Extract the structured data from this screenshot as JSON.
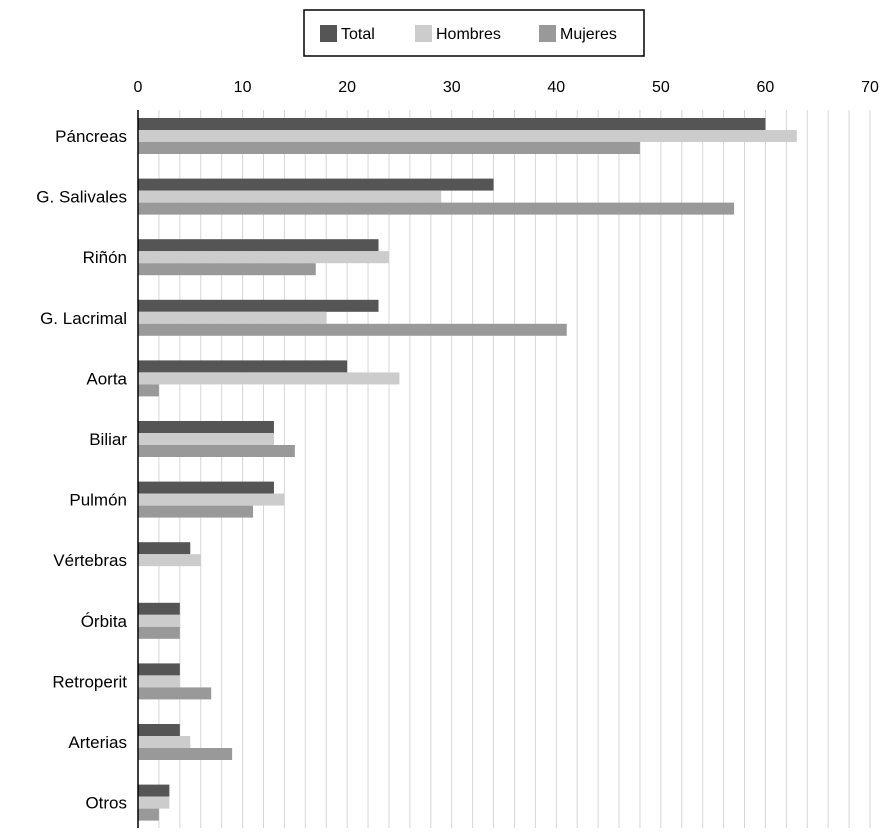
{
  "chart_data": {
    "type": "bar",
    "orientation": "horizontal",
    "categories": [
      "Páncreas",
      "G. Salivales",
      "Riñón",
      "G. Lacrimal",
      "Aorta",
      "Biliar",
      "Pulmón",
      "Vértebras",
      "Órbita",
      "Retroperit",
      "Arterias",
      "Otros"
    ],
    "series": [
      {
        "name": "Total",
        "color": "#555555",
        "values": [
          60,
          34,
          23,
          23,
          20,
          13,
          13,
          5,
          4,
          4,
          4,
          3
        ]
      },
      {
        "name": "Hombres",
        "color": "#cccccc",
        "values": [
          63,
          29,
          24,
          18,
          25,
          13,
          14,
          6,
          4,
          4,
          5,
          3
        ]
      },
      {
        "name": "Mujeres",
        "color": "#999999",
        "values": [
          48,
          57,
          17,
          41,
          2,
          15,
          11,
          0,
          4,
          7,
          9,
          2
        ]
      }
    ],
    "xlim": [
      0,
      70
    ],
    "xticks": [
      0,
      10,
      20,
      30,
      40,
      50,
      60,
      70
    ],
    "x_axis_position": "top",
    "grid": "vertical minor gridlines every 2 units",
    "legend": {
      "position": "top-center",
      "entries": [
        "Total",
        "Hombres",
        "Mujeres"
      ]
    },
    "title": "",
    "xlabel": "",
    "ylabel": ""
  }
}
